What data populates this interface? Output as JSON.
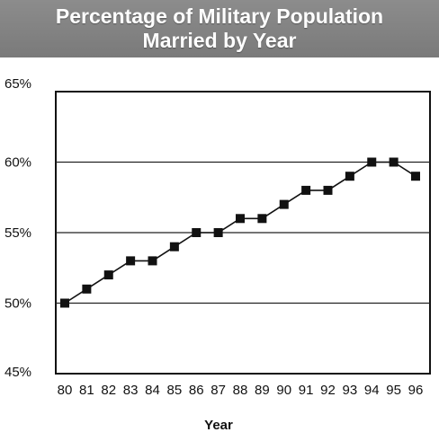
{
  "chart_data": {
    "type": "line",
    "title_lines": [
      "Percentage of Military Population",
      "Married by Year"
    ],
    "xlabel": "Year",
    "ylabel": "",
    "categories": [
      "80",
      "81",
      "82",
      "83",
      "84",
      "85",
      "86",
      "87",
      "88",
      "89",
      "90",
      "91",
      "92",
      "93",
      "94",
      "95",
      "96"
    ],
    "series": [
      {
        "values": [
          50,
          51,
          52,
          53,
          53,
          54,
          55,
          55,
          56,
          56,
          57,
          58,
          58,
          59,
          60,
          60,
          59
        ]
      }
    ],
    "ylim": [
      45,
      65
    ],
    "yticks": [
      45,
      50,
      55,
      60,
      65
    ],
    "ytick_labels": [
      "45%",
      "50%",
      "55%",
      "60%",
      "65%"
    ],
    "grid": "horizontal",
    "colors": {
      "banner": "#808080",
      "line": "#111111",
      "marker": "#111111",
      "grid": "#222222"
    }
  }
}
